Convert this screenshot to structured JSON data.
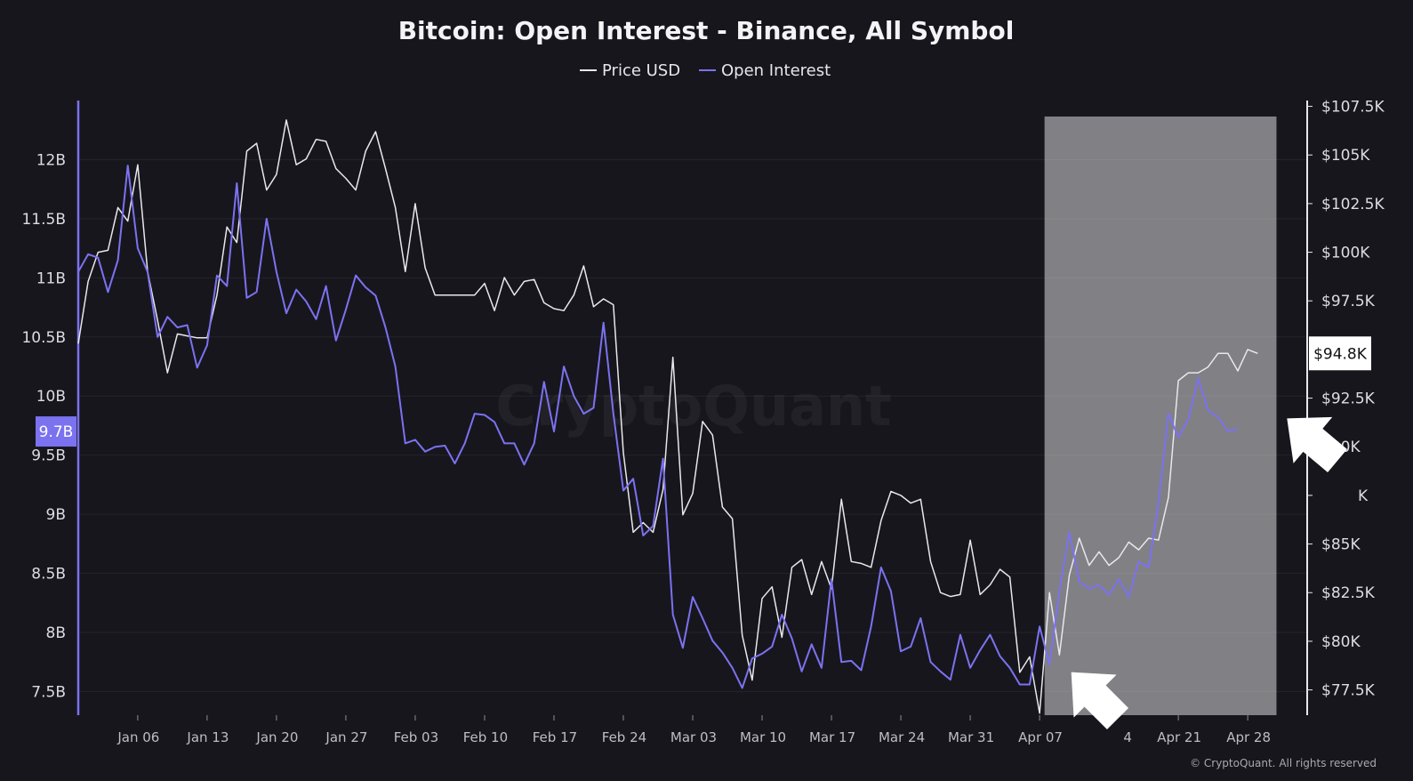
{
  "chart_data": {
    "type": "line",
    "title": "Bitcoin: Open Interest - Binance, All Symbol",
    "x_tick_labels": [
      "Jan 06",
      "Jan 13",
      "Jan 20",
      "Jan 27",
      "Feb 03",
      "Feb 10",
      "Feb 17",
      "Feb 24",
      "Mar 03",
      "Mar 10",
      "Mar 17",
      "Mar 24",
      "Mar 31",
      "Apr 07",
      "Apr 14",
      "Apr 21",
      "Apr 28"
    ],
    "x_tick_label_hidden": "Apr 14",
    "x_tick_label_visible_fragment": "4",
    "left_axis": {
      "ticks": [
        "7.5B",
        "8B",
        "8.5B",
        "9B",
        "9.5B",
        "10B",
        "10.5B",
        "11B",
        "11.5B",
        "12B"
      ],
      "range_billions": [
        7.3,
        12.5
      ]
    },
    "right_axis": {
      "ticks": [
        "$77.5K",
        "$80K",
        "$82.5K",
        "$85K",
        "$87.5K",
        "$90K",
        "$92.5K",
        "$95K",
        "$97.5K",
        "$100K",
        "$102.5K",
        "$105K",
        "$107.5K"
      ],
      "ticks_hidden": [
        "$95K"
      ],
      "tick_visible_fragment": "$87.5K",
      "tick_visible_text": "K",
      "range_thousands_usd": [
        76.2,
        107.8
      ]
    },
    "current_open_interest_label": "9.7B",
    "current_price_label": "$94.8K",
    "series": [
      {
        "name": "Price USD",
        "axis": "right",
        "color": "#e8e8ec",
        "points": [
          [
            -3,
            95.3
          ],
          [
            -2,
            98.5
          ],
          [
            -1,
            100
          ],
          [
            0,
            100.1
          ],
          [
            1,
            102.3
          ],
          [
            2,
            101.6
          ],
          [
            3,
            104.5
          ],
          [
            4,
            99
          ],
          [
            5,
            96.5
          ],
          [
            6,
            93.8
          ],
          [
            7,
            95.8
          ],
          [
            8,
            95.7
          ],
          [
            9,
            95.6
          ],
          [
            10,
            95.6
          ],
          [
            11,
            97.8
          ],
          [
            12,
            101.3
          ],
          [
            13,
            100.5
          ],
          [
            14,
            105.2
          ],
          [
            15,
            105.6
          ],
          [
            16,
            103.2
          ],
          [
            17,
            104
          ],
          [
            18,
            106.8
          ],
          [
            19,
            104.5
          ],
          [
            20,
            104.8
          ],
          [
            21,
            105.8
          ],
          [
            22,
            105.7
          ],
          [
            23,
            104.3
          ],
          [
            24,
            103.8
          ],
          [
            25,
            103.2
          ],
          [
            26,
            105.2
          ],
          [
            27,
            106.2
          ],
          [
            28,
            104.3
          ],
          [
            29,
            102.3
          ],
          [
            30,
            99
          ],
          [
            31,
            102.5
          ],
          [
            32,
            99.2
          ],
          [
            33,
            97.8
          ],
          [
            34,
            97.8
          ],
          [
            35,
            97.8
          ],
          [
            36,
            97.8
          ],
          [
            37,
            97.8
          ],
          [
            38,
            98.4
          ],
          [
            39,
            97
          ],
          [
            40,
            98.7
          ],
          [
            41,
            97.8
          ],
          [
            42,
            98.5
          ],
          [
            43,
            98.6
          ],
          [
            44,
            97.4
          ],
          [
            45,
            97.1
          ],
          [
            46,
            97
          ],
          [
            47,
            97.8
          ],
          [
            48,
            99.3
          ],
          [
            49,
            97.2
          ],
          [
            50,
            97.6
          ],
          [
            51,
            97.3
          ],
          [
            52,
            89.7
          ],
          [
            53,
            85.6
          ],
          [
            54,
            86.1
          ],
          [
            55,
            85.6
          ],
          [
            56,
            87.8
          ],
          [
            57,
            94.6
          ],
          [
            58,
            86.5
          ],
          [
            59,
            87.6
          ],
          [
            60,
            91.3
          ],
          [
            61,
            90.6
          ],
          [
            62,
            86.9
          ],
          [
            63,
            86.3
          ],
          [
            64,
            80.3
          ],
          [
            65,
            78
          ],
          [
            66,
            82.2
          ],
          [
            67,
            82.8
          ],
          [
            68,
            80.2
          ],
          [
            69,
            83.8
          ],
          [
            70,
            84.2
          ],
          [
            71,
            82.4
          ],
          [
            72,
            84.1
          ],
          [
            73,
            82.7
          ],
          [
            74,
            87.3
          ],
          [
            75,
            84.1
          ],
          [
            76,
            84
          ],
          [
            77,
            83.8
          ],
          [
            78,
            86.2
          ],
          [
            79,
            87.7
          ],
          [
            80,
            87.5
          ],
          [
            81,
            87.1
          ],
          [
            82,
            87.3
          ],
          [
            83,
            84.1
          ],
          [
            84,
            82.5
          ],
          [
            85,
            82.3
          ],
          [
            86,
            82.4
          ],
          [
            87,
            85.2
          ],
          [
            88,
            82.4
          ],
          [
            89,
            82.9
          ],
          [
            90,
            83.7
          ],
          [
            91,
            83.3
          ],
          [
            92,
            78.4
          ],
          [
            93,
            79.2
          ],
          [
            94,
            76.3
          ],
          [
            95,
            82.5
          ],
          [
            96,
            79.3
          ],
          [
            97,
            83.4
          ],
          [
            98,
            85.3
          ],
          [
            99,
            83.9
          ],
          [
            100,
            84.6
          ],
          [
            101,
            83.9
          ],
          [
            102,
            84.3
          ],
          [
            103,
            85.1
          ],
          [
            104,
            84.7
          ],
          [
            105,
            85.3
          ],
          [
            106,
            85.2
          ],
          [
            107,
            87.4
          ],
          [
            108,
            93.4
          ],
          [
            109,
            93.8
          ],
          [
            110,
            93.8
          ],
          [
            111,
            94.1
          ],
          [
            112,
            94.8
          ],
          [
            113,
            94.8
          ],
          [
            114,
            93.9
          ],
          [
            115,
            95
          ],
          [
            116,
            94.8
          ]
        ]
      },
      {
        "name": "Open Interest",
        "axis": "left",
        "color": "#7b72f0",
        "points": [
          [
            -3,
            11.05
          ],
          [
            -2,
            11.2
          ],
          [
            -1,
            11.17
          ],
          [
            0,
            10.88
          ],
          [
            1,
            11.15
          ],
          [
            2,
            11.95
          ],
          [
            3,
            11.25
          ],
          [
            4,
            11.05
          ],
          [
            5,
            10.5
          ],
          [
            6,
            10.67
          ],
          [
            7,
            10.58
          ],
          [
            8,
            10.6
          ],
          [
            9,
            10.24
          ],
          [
            10,
            10.43
          ],
          [
            11,
            11.02
          ],
          [
            12,
            10.93
          ],
          [
            13,
            11.8
          ],
          [
            14,
            10.83
          ],
          [
            15,
            10.88
          ],
          [
            16,
            11.5
          ],
          [
            17,
            11.05
          ],
          [
            18,
            10.7
          ],
          [
            19,
            10.9
          ],
          [
            20,
            10.8
          ],
          [
            21,
            10.65
          ],
          [
            22,
            10.93
          ],
          [
            23,
            10.47
          ],
          [
            24,
            10.73
          ],
          [
            25,
            11.02
          ],
          [
            26,
            10.92
          ],
          [
            27,
            10.85
          ],
          [
            28,
            10.58
          ],
          [
            29,
            10.25
          ],
          [
            30,
            9.6
          ],
          [
            31,
            9.63
          ],
          [
            32,
            9.53
          ],
          [
            33,
            9.57
          ],
          [
            34,
            9.58
          ],
          [
            35,
            9.43
          ],
          [
            36,
            9.6
          ],
          [
            37,
            9.85
          ],
          [
            38,
            9.84
          ],
          [
            39,
            9.78
          ],
          [
            40,
            9.6
          ],
          [
            41,
            9.6
          ],
          [
            42,
            9.42
          ],
          [
            43,
            9.6
          ],
          [
            44,
            10.12
          ],
          [
            45,
            9.7
          ],
          [
            46,
            10.25
          ],
          [
            47,
            10
          ],
          [
            48,
            9.85
          ],
          [
            49,
            9.9
          ],
          [
            50,
            10.62
          ],
          [
            51,
            9.85
          ],
          [
            52,
            9.2
          ],
          [
            53,
            9.3
          ],
          [
            54,
            8.82
          ],
          [
            55,
            8.9
          ],
          [
            56,
            9.47
          ],
          [
            57,
            8.15
          ],
          [
            58,
            7.87
          ],
          [
            59,
            8.3
          ],
          [
            60,
            8.12
          ],
          [
            61,
            7.93
          ],
          [
            62,
            7.83
          ],
          [
            63,
            7.7
          ],
          [
            64,
            7.53
          ],
          [
            65,
            7.78
          ],
          [
            66,
            7.82
          ],
          [
            67,
            7.88
          ],
          [
            68,
            8.15
          ],
          [
            69,
            7.95
          ],
          [
            70,
            7.67
          ],
          [
            71,
            7.9
          ],
          [
            72,
            7.7
          ],
          [
            73,
            8.45
          ],
          [
            74,
            7.75
          ],
          [
            75,
            7.76
          ],
          [
            76,
            7.68
          ],
          [
            77,
            8.05
          ],
          [
            78,
            8.55
          ],
          [
            79,
            8.35
          ],
          [
            80,
            7.84
          ],
          [
            81,
            7.88
          ],
          [
            82,
            8.12
          ],
          [
            83,
            7.75
          ],
          [
            84,
            7.67
          ],
          [
            85,
            7.6
          ],
          [
            86,
            7.98
          ],
          [
            87,
            7.7
          ],
          [
            88,
            7.85
          ],
          [
            89,
            7.98
          ],
          [
            90,
            7.8
          ],
          [
            91,
            7.7
          ],
          [
            92,
            7.56
          ],
          [
            93,
            7.56
          ],
          [
            94,
            8.05
          ],
          [
            95,
            7.73
          ],
          [
            96,
            8.35
          ],
          [
            97,
            8.85
          ],
          [
            98,
            8.43
          ],
          [
            99,
            8.37
          ],
          [
            100,
            8.4
          ],
          [
            101,
            8.32
          ],
          [
            102,
            8.45
          ],
          [
            103,
            8.3
          ],
          [
            104,
            8.6
          ],
          [
            105,
            8.55
          ],
          [
            106,
            9.1
          ],
          [
            107,
            9.85
          ],
          [
            108,
            9.65
          ],
          [
            109,
            9.8
          ],
          [
            110,
            10.15
          ],
          [
            111,
            9.88
          ],
          [
            112,
            9.82
          ],
          [
            113,
            9.7
          ],
          [
            114,
            9.72
          ]
        ]
      }
    ],
    "x_tick_positions": [
      3,
      10,
      17,
      24,
      31,
      38,
      45,
      52,
      59,
      66,
      73,
      80,
      87,
      94,
      101,
      108,
      115
    ],
    "x_range": [
      -3,
      121
    ],
    "highlight_band_x": [
      94.5,
      117.9
    ],
    "legend_placement": "top-center",
    "grid": true,
    "watermark": "CryptoQuant",
    "credit": "© CryptoQuant. All rights reserved"
  }
}
